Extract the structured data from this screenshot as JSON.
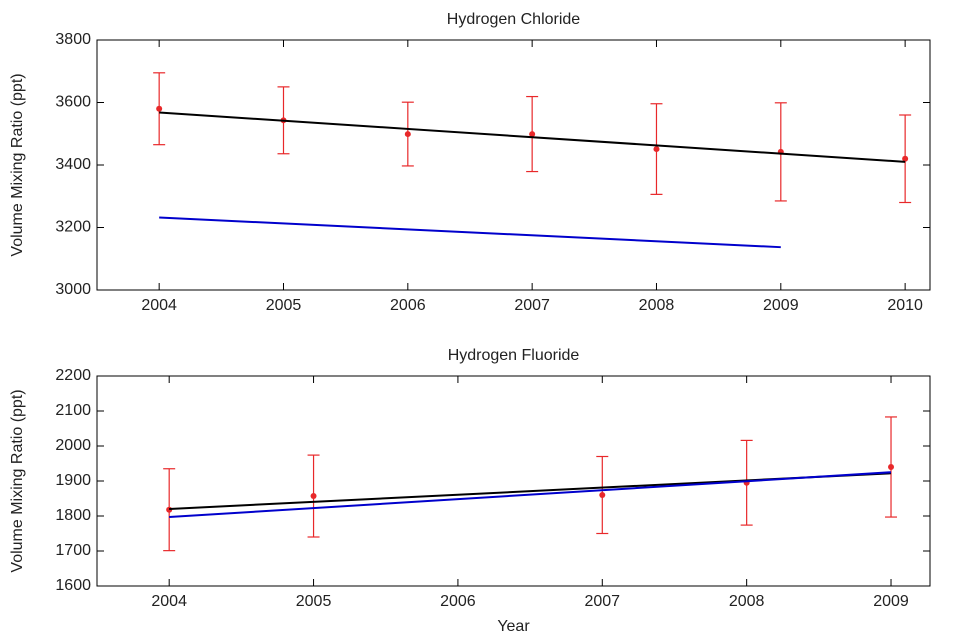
{
  "chart_data": [
    {
      "type": "errorbar",
      "title": "Hydrogen Chloride",
      "ylabel": "Volume Mixing Ratio (ppt)",
      "xlim": [
        2003.5,
        2010.2
      ],
      "xticks": [
        2004,
        2005,
        2006,
        2007,
        2008,
        2009,
        2010
      ],
      "ylim": [
        3000,
        3800
      ],
      "yticks": [
        3000,
        3200,
        3400,
        3600,
        3800
      ],
      "series": [
        {
          "color": "#e8282a",
          "x": [
            2004,
            2005,
            2006,
            2007,
            2008,
            2009,
            2010
          ],
          "values": [
            3580,
            3543,
            3499,
            3499,
            3451,
            3442,
            3420
          ],
          "errors": [
            115,
            107,
            102,
            120,
            145,
            157,
            140
          ]
        }
      ],
      "lines": [
        {
          "color": "#000000",
          "x": [
            2004,
            2010
          ],
          "values": [
            3568,
            3410
          ]
        },
        {
          "color": "#0000cc",
          "x": [
            2004,
            2009
          ],
          "values": [
            3232,
            3137
          ]
        }
      ]
    },
    {
      "type": "errorbar",
      "title": "Hydrogen Fluoride",
      "ylabel": "Volume Mixing Ratio (ppt)",
      "xlabel": "Year",
      "xlim": [
        2003.5,
        2009.27
      ],
      "xticks": [
        2004,
        2005,
        2006,
        2007,
        2008,
        2009
      ],
      "ylim": [
        1600,
        2200
      ],
      "yticks": [
        1600,
        1700,
        1800,
        1900,
        2000,
        2100,
        2200
      ],
      "series": [
        {
          "color": "#e8282a",
          "x": [
            2004,
            2005,
            2007,
            2008,
            2009
          ],
          "values": [
            1818,
            1857,
            1860,
            1895,
            1940
          ],
          "errors": [
            117,
            117,
            110,
            121,
            143
          ]
        }
      ],
      "lines": [
        {
          "color": "#000000",
          "x": [
            2004,
            2009
          ],
          "values": [
            1820,
            1922
          ]
        },
        {
          "color": "#0000cc",
          "x": [
            2004,
            2009
          ],
          "values": [
            1797,
            1925
          ]
        }
      ]
    }
  ]
}
